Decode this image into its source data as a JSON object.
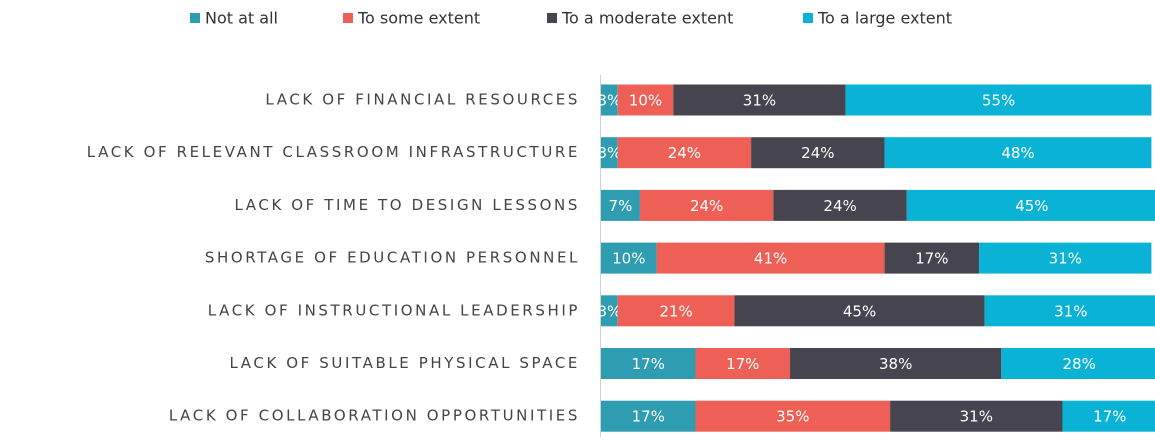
{
  "chart_data": {
    "type": "stacked-bar-horizontal",
    "categories": [
      "LACK OF FINANCIAL RESOURCES",
      "LACK OF RELEVANT CLASSROOM INFRASTRUCTURE",
      "LACK OF TIME TO DESIGN LESSONS",
      "SHORTAGE OF EDUCATION PERSONNEL",
      "LACK OF INSTRUCTIONAL LEADERSHIP",
      "LACK OF SUITABLE PHYSICAL SPACE",
      "LACK OF COLLABORATION OPPORTUNITIES"
    ],
    "series": [
      {
        "name": "Not at all",
        "color": "#2e9db2",
        "values": [
          3,
          3,
          7,
          10,
          3,
          17,
          17
        ],
        "value_labels": [
          "3%",
          "3%",
          "7%",
          "10%",
          "3%",
          "17%",
          "17%"
        ]
      },
      {
        "name": "To some extent",
        "color": "#ee5f56",
        "values": [
          10,
          24,
          24,
          41,
          21,
          17,
          35
        ],
        "value_labels": [
          "10%",
          "24%",
          "24%",
          "41%",
          "21%",
          "17%",
          "35%"
        ]
      },
      {
        "name": "To a moderate extent",
        "color": "#46454f",
        "values": [
          31,
          24,
          24,
          17,
          45,
          38,
          31
        ],
        "value_labels": [
          "31%",
          "24%",
          "24%",
          "17%",
          "45%",
          "38%",
          "31%"
        ]
      },
      {
        "name": "To a large extent",
        "color": "#0ab3d6",
        "values": [
          55,
          48,
          45,
          31,
          31,
          28,
          17
        ],
        "value_labels": [
          "55%",
          "48%",
          "45%",
          "31%",
          "31%",
          "28%",
          "17%"
        ]
      }
    ],
    "xlim": [
      0,
      100
    ],
    "legend": "top"
  }
}
